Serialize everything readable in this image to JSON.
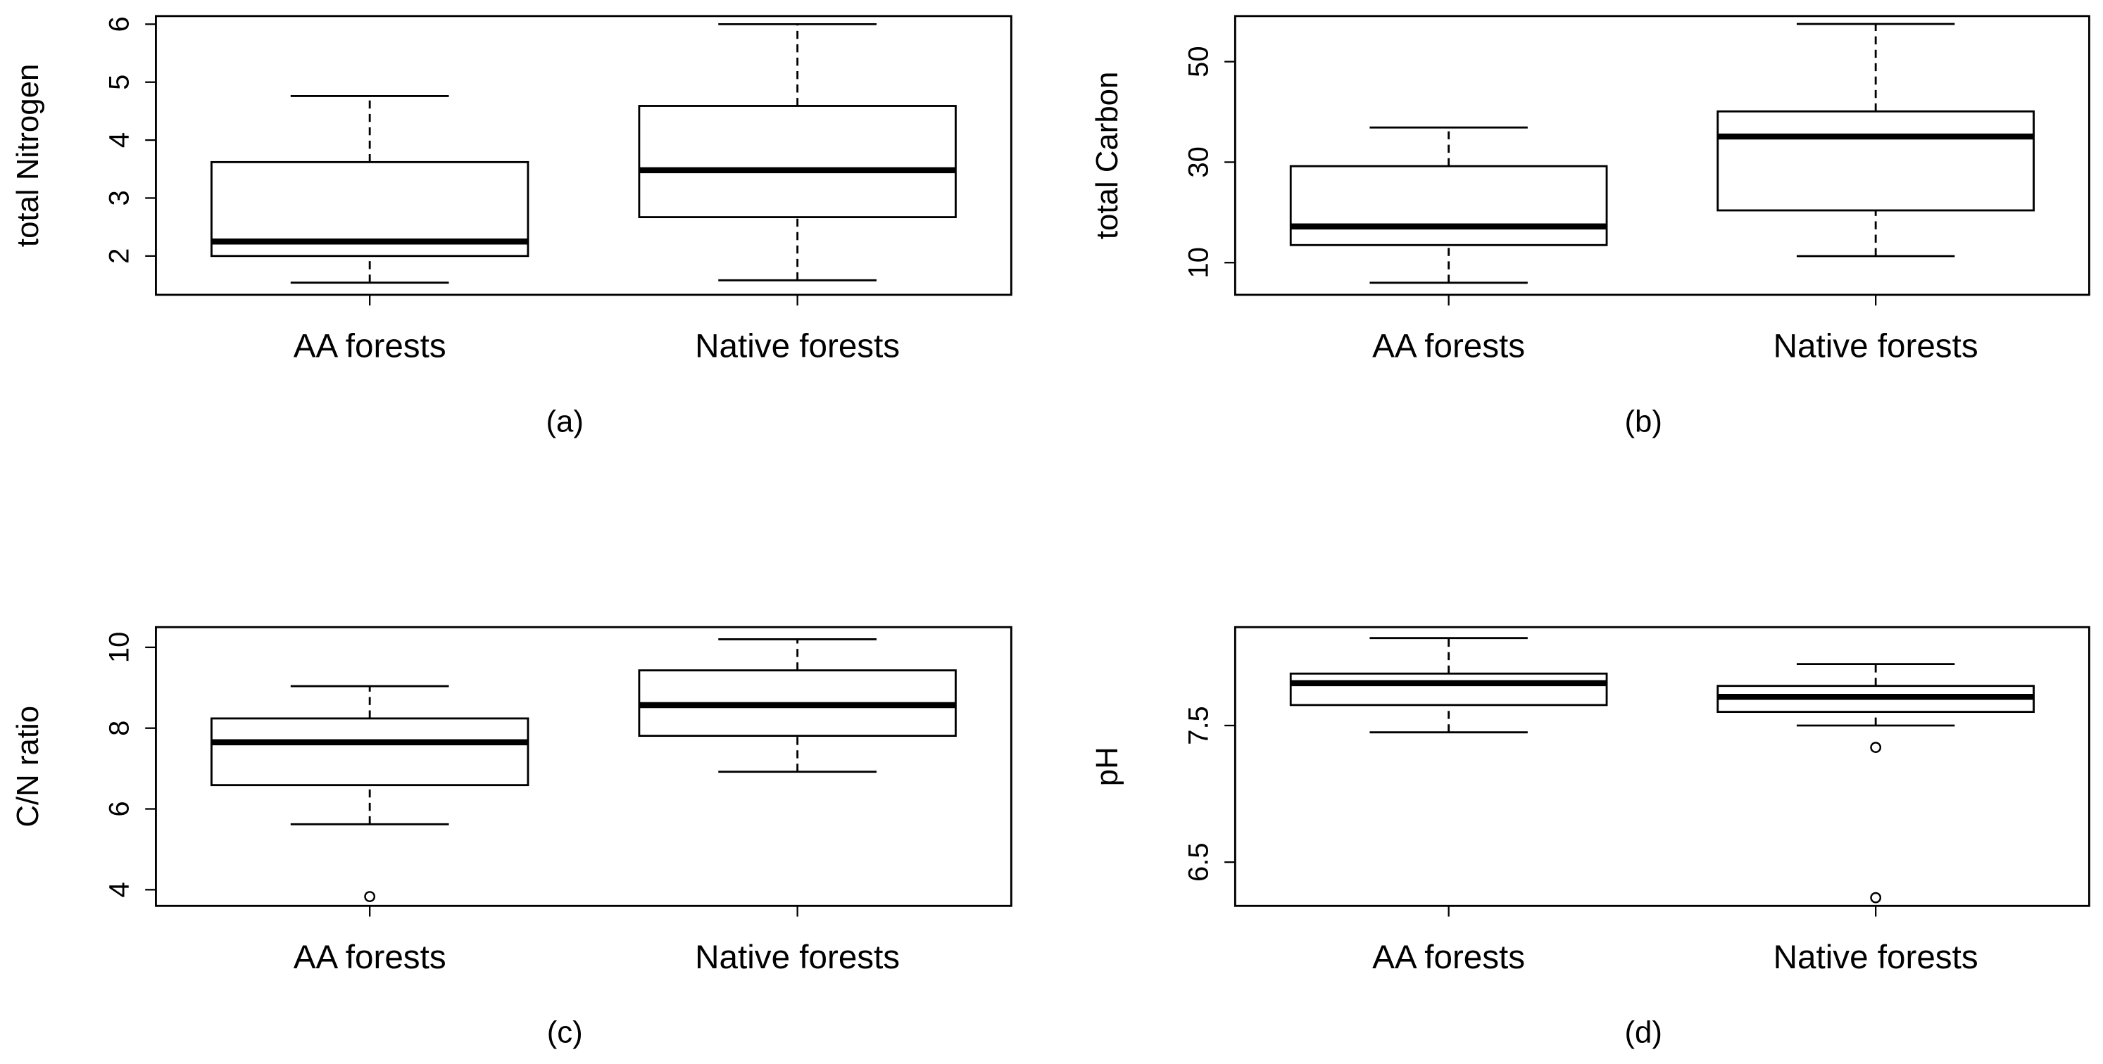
{
  "chart_data": [
    {
      "type": "box",
      "ylabel": "total Nitrogen",
      "caption": "(a)",
      "categories": [
        "AA forests",
        "Native forests"
      ],
      "boxes": [
        {
          "min": 1.54,
          "q1": 2.0,
          "median": 2.25,
          "q3": 3.62,
          "max": 4.76,
          "outliers": []
        },
        {
          "min": 1.58,
          "q1": 2.67,
          "median": 3.48,
          "q3": 4.59,
          "max": 6.0,
          "outliers": []
        }
      ],
      "ylim": [
        1.33,
        6.14
      ],
      "yticks": [
        2,
        3,
        4,
        5,
        6
      ]
    },
    {
      "type": "box",
      "ylabel": "total Carbon",
      "caption": "(b)",
      "categories": [
        "AA forests",
        "Native forests"
      ],
      "boxes": [
        {
          "min": 6.0,
          "q1": 13.5,
          "median": 17.2,
          "q3": 29.2,
          "max": 36.9,
          "outliers": []
        },
        {
          "min": 11.3,
          "q1": 20.4,
          "median": 35.1,
          "q3": 40.1,
          "max": 57.5,
          "outliers": []
        }
      ],
      "ylim": [
        3.6,
        59.07
      ],
      "yticks": [
        10,
        30,
        50
      ]
    },
    {
      "type": "box",
      "ylabel": "C/N ratio",
      "caption": "(c)",
      "categories": [
        "AA forests",
        "Native forests"
      ],
      "boxes": [
        {
          "min": 5.62,
          "q1": 6.59,
          "median": 7.65,
          "q3": 8.24,
          "max": 9.04,
          "outliers": [
            3.83
          ]
        },
        {
          "min": 6.92,
          "q1": 7.81,
          "median": 8.57,
          "q3": 9.43,
          "max": 10.2,
          "outliers": []
        }
      ],
      "ylim": [
        3.6,
        10.5
      ],
      "yticks": [
        4,
        6,
        8,
        10
      ]
    },
    {
      "type": "box",
      "ylabel": "pH",
      "caption": "(d)",
      "categories": [
        "AA forests",
        "Native forests"
      ],
      "boxes": [
        {
          "min": 7.45,
          "q1": 7.65,
          "median": 7.81,
          "q3": 7.88,
          "max": 8.14,
          "outliers": []
        },
        {
          "min": 7.5,
          "q1": 7.6,
          "median": 7.71,
          "q3": 7.79,
          "max": 7.95,
          "outliers": [
            7.34,
            6.24
          ]
        }
      ],
      "ylim": [
        6.18,
        8.22
      ],
      "yticks": [
        6.5,
        7.5
      ]
    }
  ]
}
